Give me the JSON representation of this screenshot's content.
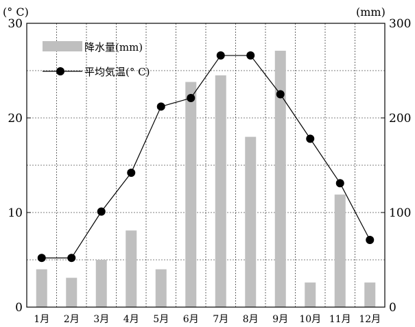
{
  "chart_data": {
    "type": "bar+line",
    "categories": [
      "1月",
      "2月",
      "3月",
      "4月",
      "5月",
      "6月",
      "7月",
      "8月",
      "9月",
      "10月",
      "11月",
      "12月"
    ],
    "series": [
      {
        "name": "降水量(mm)",
        "type": "bar",
        "axis": "right",
        "color": "#bfbfbf",
        "values": [
          40,
          31,
          50,
          81,
          40,
          238,
          245,
          180,
          271,
          26,
          119,
          26
        ]
      },
      {
        "name": "平均気温(°C)",
        "type": "line",
        "axis": "left",
        "color": "#000000",
        "values": [
          5.2,
          5.2,
          10.1,
          14.2,
          21.2,
          22.1,
          26.6,
          26.6,
          22.5,
          17.8,
          13.1,
          7.1
        ]
      }
    ],
    "left_axis": {
      "unit": "(°  C)",
      "ylim": [
        0,
        30
      ],
      "ticks": [
        "0",
        "10",
        "20",
        "30"
      ]
    },
    "right_axis": {
      "unit": "(mm)",
      "ylim": [
        0,
        300
      ],
      "ticks": [
        "0",
        "100",
        "200",
        "300"
      ]
    },
    "grid": true,
    "legend_position": "top-left",
    "legend": {
      "bar_label": "降水量(mm)",
      "line_label": "平均気温(°  C)"
    }
  }
}
